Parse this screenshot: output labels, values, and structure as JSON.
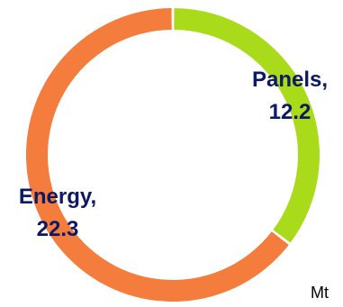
{
  "chart_data": {
    "type": "pie",
    "style": "donut",
    "slices": [
      {
        "label": "Panels",
        "value": 12.2,
        "display": "12.2",
        "color": "#A9DB1A"
      },
      {
        "label": "Energy",
        "value": 22.3,
        "display": "22.3",
        "color": "#F47C3C"
      }
    ],
    "unit": "Mt",
    "label_color": "#0D1A63"
  }
}
